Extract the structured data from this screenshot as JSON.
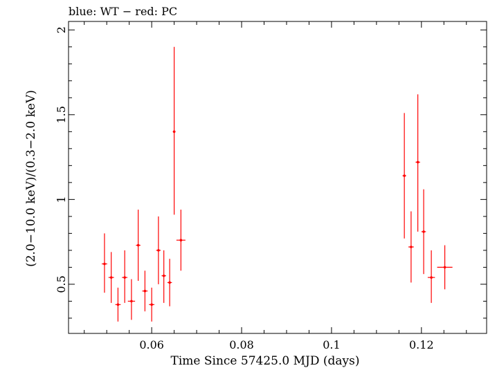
{
  "chart_data": {
    "type": "scatter",
    "title": "blue: WT − red: PC",
    "xlabel": "Time Since 57425.0 MJD (days)",
    "ylabel": "(2.0−10.0 keV)/(0.3−2.0 keV)",
    "xlim": [
      0.0415,
      0.1345
    ],
    "ylim": [
      0.21,
      2.05
    ],
    "x_ticks": [
      0.06,
      0.08,
      0.1,
      0.12
    ],
    "x_tick_labels": [
      "0.06",
      "0.08",
      "0.1",
      "0.12"
    ],
    "y_ticks": [
      0.5,
      1,
      1.5,
      2
    ],
    "y_tick_labels": [
      "0.5",
      "1",
      "1.5",
      "2"
    ],
    "grid": false,
    "series": [
      {
        "color": "#ff0000",
        "points": [
          {
            "x": 0.0495,
            "xerr": 0.0006,
            "y": 0.62,
            "ylo": 0.45,
            "yhi": 0.8
          },
          {
            "x": 0.051,
            "xerr": 0.0006,
            "y": 0.54,
            "ylo": 0.39,
            "yhi": 0.69
          },
          {
            "x": 0.0525,
            "xerr": 0.0006,
            "y": 0.38,
            "ylo": 0.28,
            "yhi": 0.48
          },
          {
            "x": 0.054,
            "xerr": 0.0006,
            "y": 0.54,
            "ylo": 0.39,
            "yhi": 0.7
          },
          {
            "x": 0.0555,
            "xerr": 0.0008,
            "y": 0.4,
            "ylo": 0.29,
            "yhi": 0.53
          },
          {
            "x": 0.057,
            "xerr": 0.0005,
            "y": 0.73,
            "ylo": 0.52,
            "yhi": 0.94
          },
          {
            "x": 0.0585,
            "xerr": 0.0006,
            "y": 0.46,
            "ylo": 0.34,
            "yhi": 0.58
          },
          {
            "x": 0.06,
            "xerr": 0.0006,
            "y": 0.38,
            "ylo": 0.28,
            "yhi": 0.48
          },
          {
            "x": 0.0615,
            "xerr": 0.0005,
            "y": 0.7,
            "ylo": 0.5,
            "yhi": 0.9
          },
          {
            "x": 0.0627,
            "xerr": 0.0005,
            "y": 0.55,
            "ylo": 0.39,
            "yhi": 0.7
          },
          {
            "x": 0.064,
            "xerr": 0.0005,
            "y": 0.51,
            "ylo": 0.37,
            "yhi": 0.65
          },
          {
            "x": 0.065,
            "xerr": 0.0003,
            "y": 1.4,
            "ylo": 0.91,
            "yhi": 1.9
          },
          {
            "x": 0.0665,
            "xerr": 0.001,
            "y": 0.76,
            "ylo": 0.58,
            "yhi": 0.94
          },
          {
            "x": 0.1162,
            "xerr": 0.0004,
            "y": 1.14,
            "ylo": 0.77,
            "yhi": 1.51
          },
          {
            "x": 0.1177,
            "xerr": 0.0006,
            "y": 0.72,
            "ylo": 0.51,
            "yhi": 0.93
          },
          {
            "x": 0.1192,
            "xerr": 0.0005,
            "y": 1.22,
            "ylo": 0.81,
            "yhi": 1.62
          },
          {
            "x": 0.1205,
            "xerr": 0.0005,
            "y": 0.81,
            "ylo": 0.56,
            "yhi": 1.06
          },
          {
            "x": 0.1222,
            "xerr": 0.0008,
            "y": 0.54,
            "ylo": 0.39,
            "yhi": 0.7
          },
          {
            "x": 0.1252,
            "xerr": 0.0017,
            "y": 0.6,
            "ylo": 0.47,
            "yhi": 0.73
          }
        ]
      }
    ]
  }
}
